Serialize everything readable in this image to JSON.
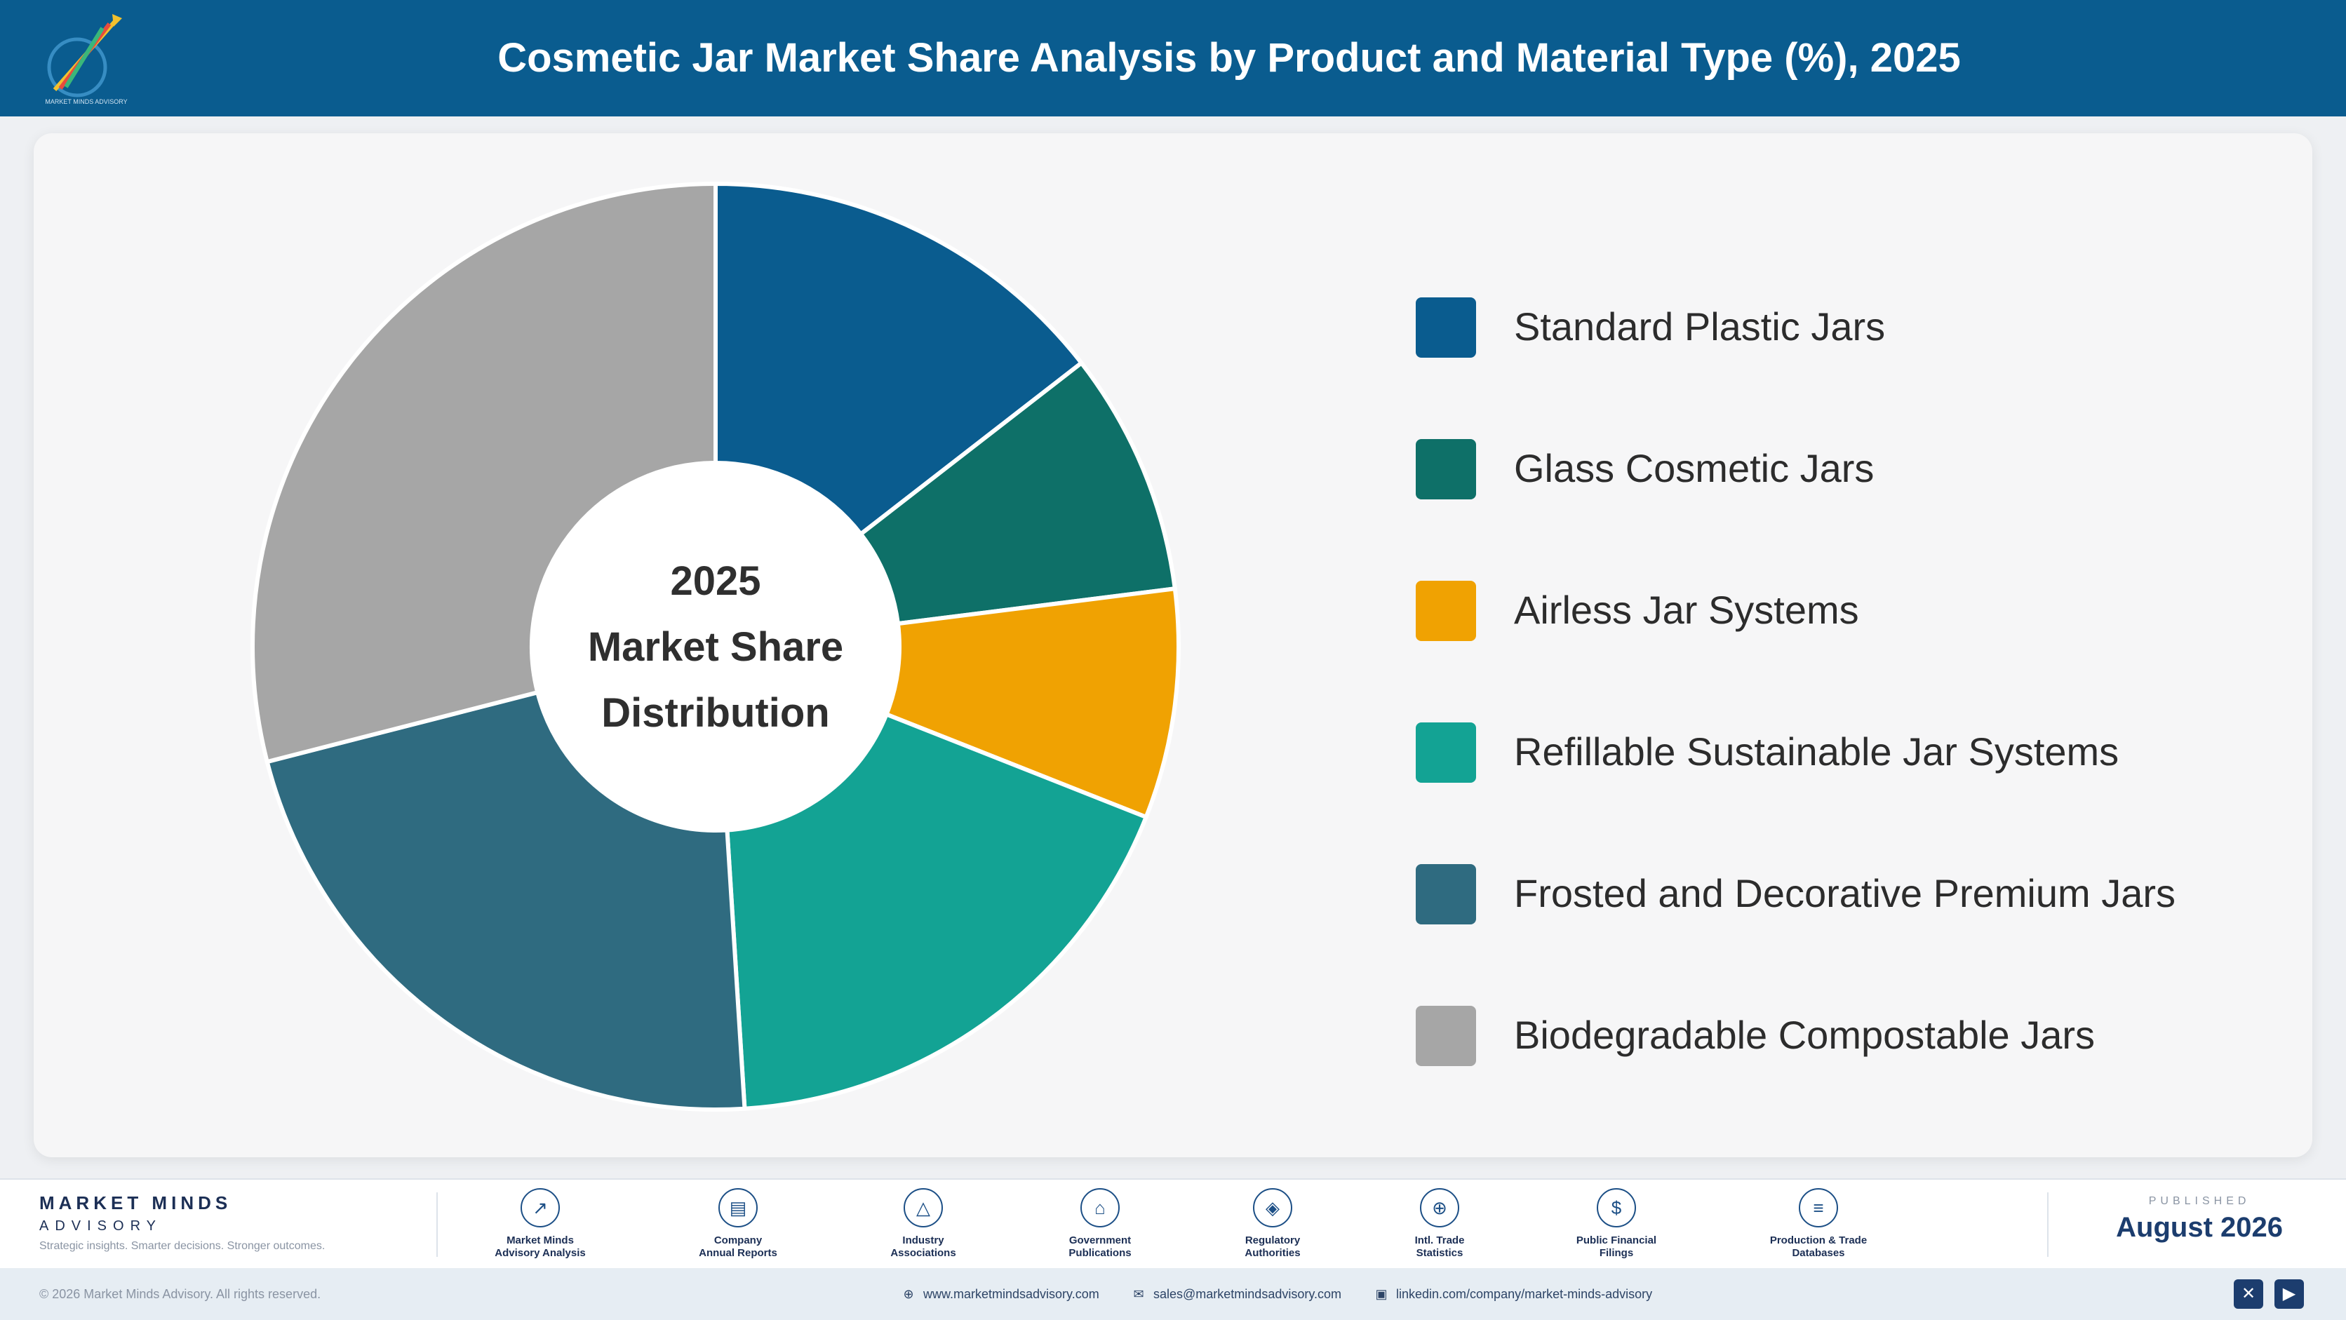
{
  "header": {
    "title": "Cosmetic Jar Market Share Analysis by Product and Material Type (%), 2025"
  },
  "chart_data": {
    "type": "pie",
    "style": "donut",
    "title": "Cosmetic Jar Market Share Analysis by Product and Material Type (%), 2025",
    "center_label": [
      "2025",
      "Market Share",
      "Distribution"
    ],
    "categories": [
      "Standard Plastic Jars",
      "Glass Cosmetic Jars",
      "Airless Jar Systems",
      "Refillable Sustainable Jar Systems",
      "Frosted and Decorative Premium Jars",
      "Biodegradable Compostable Jars"
    ],
    "values": [
      14.5,
      8.5,
      8.0,
      18.0,
      22.0,
      29.0
    ],
    "colors": [
      "#0a5c8f",
      "#0e7068",
      "#f0a202",
      "#13a394",
      "#2f6b80",
      "#a6a6a6"
    ],
    "legend_position": "right"
  },
  "footer": {
    "brand_name": "MARKET MINDS",
    "brand_sub": "ADVISORY",
    "brand_tag": "Strategic insights. Smarter decisions. Stronger outcomes.",
    "sources": [
      {
        "line1": "Market Minds",
        "line2": "Advisory Analysis",
        "icon": "trend-icon"
      },
      {
        "line1": "Company",
        "line2": "Annual Reports",
        "icon": "document-icon"
      },
      {
        "line1": "Industry",
        "line2": "Associations",
        "icon": "network-icon"
      },
      {
        "line1": "Government",
        "line2": "Publications",
        "icon": "building-icon"
      },
      {
        "line1": "Regulatory",
        "line2": "Authorities",
        "icon": "shield-icon"
      },
      {
        "line1": "Intl. Trade",
        "line2": "Statistics",
        "icon": "globe-icon"
      },
      {
        "line1": "Public Financial",
        "line2": "Filings",
        "icon": "coin-icon"
      },
      {
        "line1": "Production & Trade",
        "line2": "Databases",
        "icon": "database-icon"
      }
    ],
    "published_label": "PUBLISHED",
    "published_date": "August 2026"
  },
  "bottom_bar": {
    "copyright": "© 2026 Market Minds Advisory. All rights reserved.",
    "website": "www.marketmindsadvisory.com",
    "email": "sales@marketmindsadvisory.com",
    "linkedin": "linkedin.com/company/market-minds-advisory"
  }
}
